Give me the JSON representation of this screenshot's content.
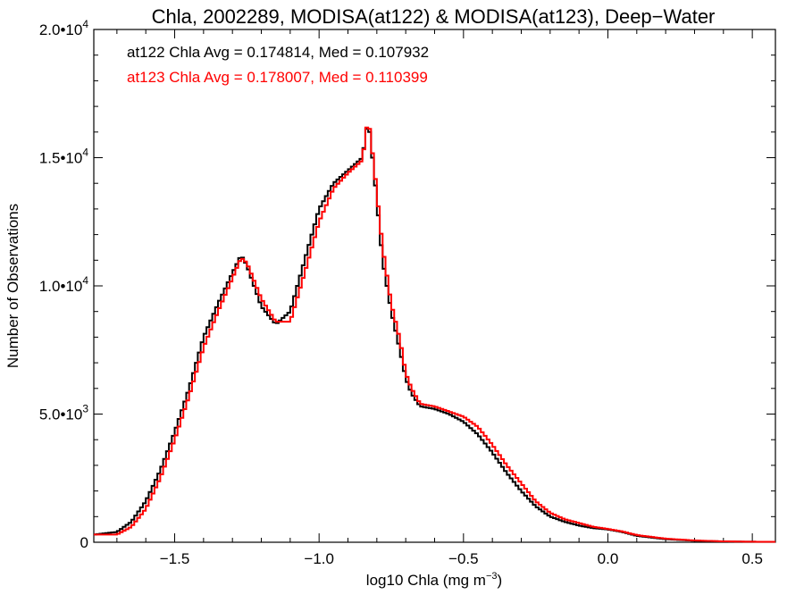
{
  "chart_data": {
    "type": "line",
    "step": true,
    "title": "Chla, 2002289, MODISA(at122) & MODISA(at123), Deep−Water",
    "xlabel_main": "log10 Chla (mg m",
    "xlabel_sup": "−3",
    "xlabel_end": ")",
    "ylabel": "Number of Observations",
    "xlim": [
      -1.78,
      0.58
    ],
    "ylim": [
      0,
      20000
    ],
    "grid": false,
    "x_ticks": [
      {
        "value": -1.5,
        "label": "−1.5"
      },
      {
        "value": -1.0,
        "label": "−1.0"
      },
      {
        "value": -0.5,
        "label": "−0.5"
      },
      {
        "value": 0.0,
        "label": "0.0"
      },
      {
        "value": 0.5,
        "label": "0.5"
      }
    ],
    "y_ticks": [
      {
        "value": 0,
        "mant": "0",
        "exp": ""
      },
      {
        "value": 5000,
        "mant": "5.0•10",
        "exp": "3"
      },
      {
        "value": 10000,
        "mant": "1.0•10",
        "exp": "4"
      },
      {
        "value": 15000,
        "mant": "1.5•10",
        "exp": "4"
      },
      {
        "value": 20000,
        "mant": "2.0•10",
        "exp": "4"
      }
    ],
    "annotations": [
      {
        "text": "at122 Chla Avg = 0.174814, Med = 0.107932",
        "color": "#000000"
      },
      {
        "text": "at123 Chla Avg = 0.178007, Med = 0.110399",
        "color": "#ff0000"
      }
    ],
    "series": [
      {
        "color": "#000000",
        "x": [
          -1.78,
          -1.7,
          -1.65,
          -1.6,
          -1.55,
          -1.5,
          -1.45,
          -1.4,
          -1.35,
          -1.3,
          -1.27,
          -1.25,
          -1.2,
          -1.15,
          -1.1,
          -1.05,
          -1.0,
          -0.95,
          -0.9,
          -0.85,
          -0.83,
          -0.81,
          -0.78,
          -0.75,
          -0.72,
          -0.7,
          -0.68,
          -0.65,
          -0.6,
          -0.55,
          -0.5,
          -0.45,
          -0.4,
          -0.35,
          -0.3,
          -0.25,
          -0.2,
          -0.15,
          -0.1,
          -0.05,
          0.0,
          0.05,
          0.1,
          0.2,
          0.3,
          0.4,
          0.5,
          0.58
        ],
        "y": [
          300,
          400,
          800,
          1600,
          2800,
          4300,
          6000,
          8000,
          9300,
          10500,
          11200,
          10800,
          9200,
          8500,
          9000,
          11000,
          13000,
          14000,
          14500,
          15000,
          16500,
          14500,
          11000,
          9000,
          7500,
          6400,
          5800,
          5300,
          5200,
          5000,
          4700,
          4200,
          3500,
          2700,
          2000,
          1400,
          1000,
          800,
          650,
          550,
          500,
          400,
          250,
          120,
          60,
          30,
          20,
          15
        ]
      },
      {
        "color": "#ff0000",
        "x": [
          -1.78,
          -1.7,
          -1.65,
          -1.6,
          -1.55,
          -1.5,
          -1.45,
          -1.4,
          -1.35,
          -1.3,
          -1.27,
          -1.25,
          -1.2,
          -1.15,
          -1.1,
          -1.05,
          -1.0,
          -0.95,
          -0.9,
          -0.85,
          -0.83,
          -0.81,
          -0.78,
          -0.75,
          -0.72,
          -0.7,
          -0.68,
          -0.65,
          -0.6,
          -0.55,
          -0.5,
          -0.45,
          -0.4,
          -0.35,
          -0.3,
          -0.25,
          -0.2,
          -0.15,
          -0.1,
          -0.05,
          0.0,
          0.05,
          0.1,
          0.2,
          0.3,
          0.4,
          0.5,
          0.58
        ],
        "y": [
          300,
          300,
          600,
          1300,
          2500,
          4000,
          5700,
          7600,
          9000,
          10300,
          11100,
          10900,
          9500,
          8600,
          8600,
          10500,
          12500,
          13800,
          14400,
          14900,
          16600,
          14700,
          11500,
          9300,
          7900,
          6600,
          6000,
          5400,
          5300,
          5100,
          4900,
          4500,
          3800,
          3000,
          2300,
          1600,
          1150,
          900,
          750,
          600,
          520,
          420,
          280,
          140,
          70,
          35,
          20,
          15
        ]
      }
    ]
  }
}
